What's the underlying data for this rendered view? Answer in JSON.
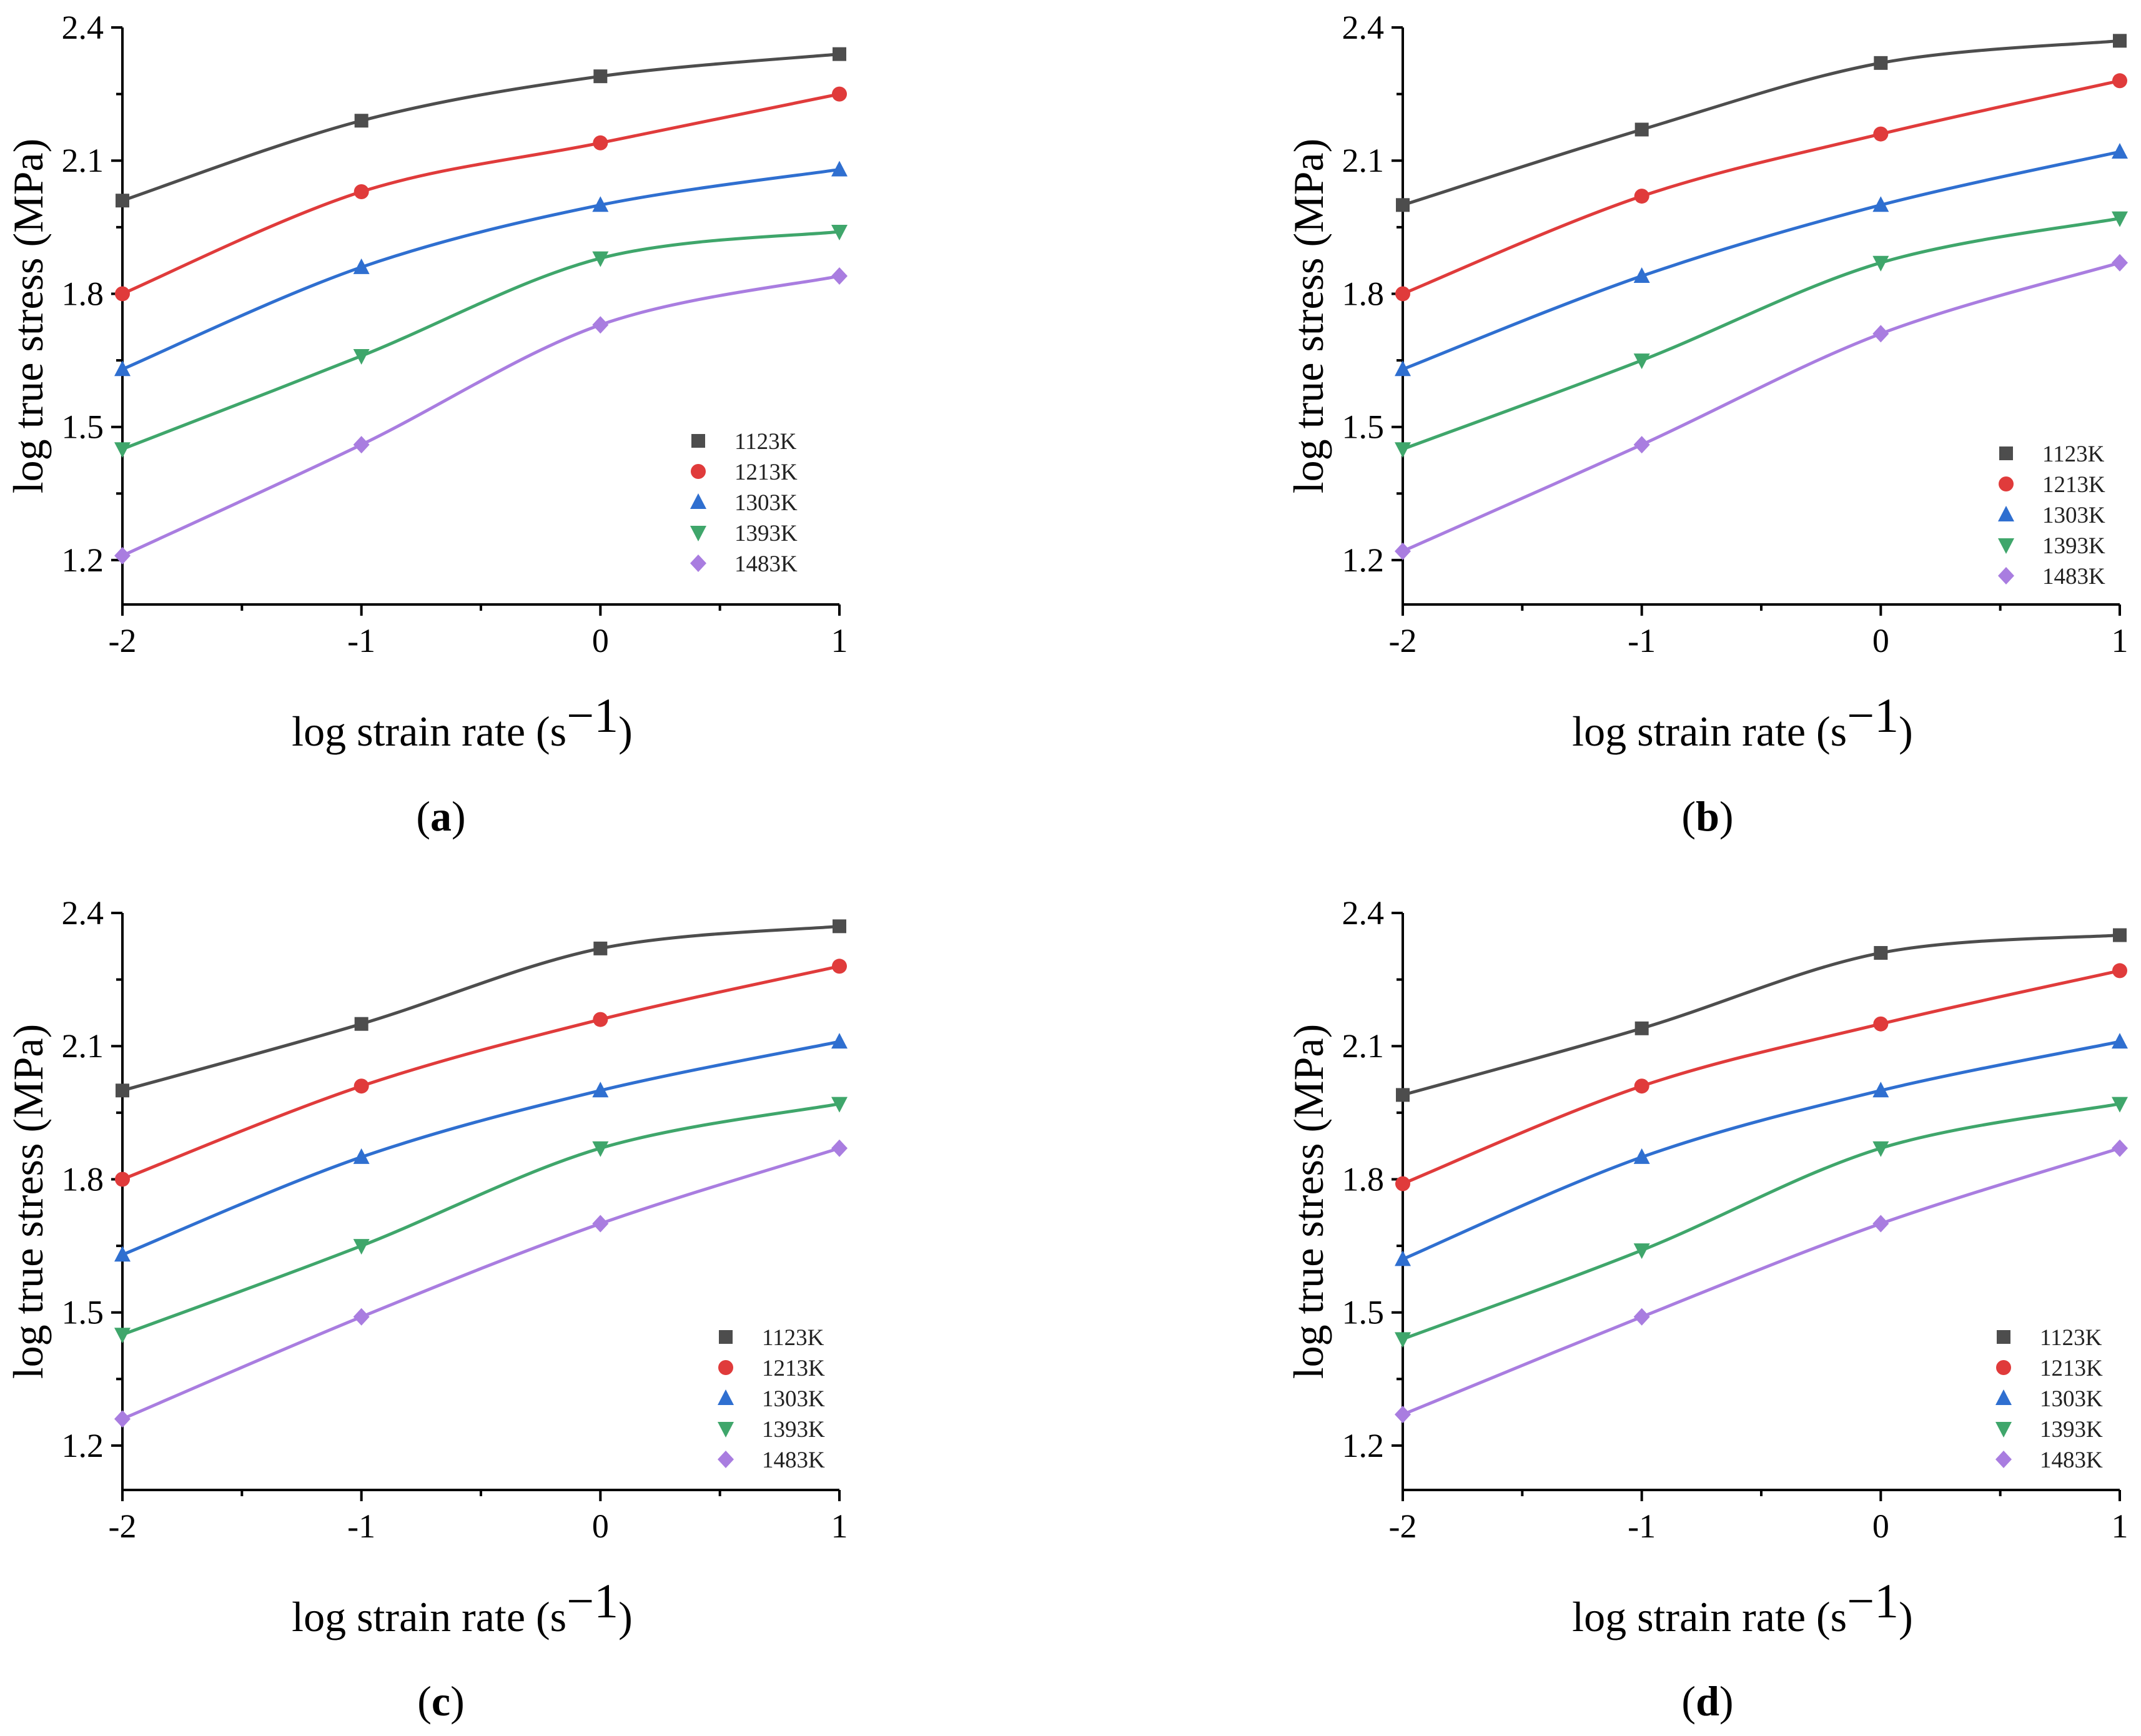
{
  "chart_data": [
    {
      "panel": "a",
      "caption": "(a)",
      "type": "line",
      "xlabel": "log strain rate (s",
      "xlabel_sup": "−1",
      "xlabel_close": ")",
      "ylabel": "log true stress (MPa)",
      "xlim": [
        -2,
        1
      ],
      "ylim": [
        1.1,
        2.4
      ],
      "xticks": [
        "-2",
        "-1",
        "0",
        "1"
      ],
      "yticks": [
        "1.2",
        "1.5",
        "1.8",
        "2.1",
        "2.4"
      ],
      "x": [
        -2,
        -1,
        0,
        1
      ],
      "series": [
        {
          "name": "1123K",
          "marker": "square",
          "color": "#4d4d4d",
          "values": [
            2.01,
            2.19,
            2.29,
            2.34
          ]
        },
        {
          "name": "1213K",
          "marker": "circle",
          "color": "#e03b3b",
          "values": [
            1.8,
            2.03,
            2.14,
            2.25
          ]
        },
        {
          "name": "1303K",
          "marker": "triangle-up",
          "color": "#2f6fd0",
          "values": [
            1.63,
            1.86,
            2.0,
            2.08
          ]
        },
        {
          "name": "1393K",
          "marker": "triangle-down",
          "color": "#3fa66b",
          "values": [
            1.45,
            1.66,
            1.88,
            1.94
          ]
        },
        {
          "name": "1483K",
          "marker": "diamond",
          "color": "#a97de0",
          "values": [
            1.21,
            1.46,
            1.73,
            1.84
          ]
        }
      ]
    },
    {
      "panel": "b",
      "caption": "(b)",
      "type": "line",
      "xlabel": "log strain rate (s",
      "xlabel_sup": "−1",
      "xlabel_close": ")",
      "ylabel": "log true stress (MPa)",
      "xlim": [
        -2,
        1
      ],
      "ylim": [
        1.1,
        2.4
      ],
      "xticks": [
        "-2",
        "-1",
        "0",
        "1"
      ],
      "yticks": [
        "1.2",
        "1.5",
        "1.8",
        "2.1",
        "2.4"
      ],
      "x": [
        -2,
        -1,
        0,
        1
      ],
      "series": [
        {
          "name": "1123K",
          "marker": "square",
          "color": "#4d4d4d",
          "values": [
            2.0,
            2.17,
            2.32,
            2.37
          ]
        },
        {
          "name": "1213K",
          "marker": "circle",
          "color": "#e03b3b",
          "values": [
            1.8,
            2.02,
            2.16,
            2.28
          ]
        },
        {
          "name": "1303K",
          "marker": "triangle-up",
          "color": "#2f6fd0",
          "values": [
            1.63,
            1.84,
            2.0,
            2.12
          ]
        },
        {
          "name": "1393K",
          "marker": "triangle-down",
          "color": "#3fa66b",
          "values": [
            1.45,
            1.65,
            1.87,
            1.97
          ]
        },
        {
          "name": "1483K",
          "marker": "diamond",
          "color": "#a97de0",
          "values": [
            1.22,
            1.46,
            1.71,
            1.87
          ]
        }
      ]
    },
    {
      "panel": "c",
      "caption": "(c)",
      "type": "line",
      "xlabel": "log strain rate (s",
      "xlabel_sup": "−1",
      "xlabel_close": ")",
      "ylabel": "log true stress (MPa)",
      "xlim": [
        -2,
        1
      ],
      "ylim": [
        1.1,
        2.4
      ],
      "xticks": [
        "-2",
        "-1",
        "0",
        "1"
      ],
      "yticks": [
        "1.2",
        "1.5",
        "1.8",
        "2.1",
        "2.4"
      ],
      "x": [
        -2,
        -1,
        0,
        1
      ],
      "series": [
        {
          "name": "1123K",
          "marker": "square",
          "color": "#4d4d4d",
          "values": [
            2.0,
            2.15,
            2.32,
            2.37
          ]
        },
        {
          "name": "1213K",
          "marker": "circle",
          "color": "#e03b3b",
          "values": [
            1.8,
            2.01,
            2.16,
            2.28
          ]
        },
        {
          "name": "1303K",
          "marker": "triangle-up",
          "color": "#2f6fd0",
          "values": [
            1.63,
            1.85,
            2.0,
            2.11
          ]
        },
        {
          "name": "1393K",
          "marker": "triangle-down",
          "color": "#3fa66b",
          "values": [
            1.45,
            1.65,
            1.87,
            1.97
          ]
        },
        {
          "name": "1483K",
          "marker": "diamond",
          "color": "#a97de0",
          "values": [
            1.26,
            1.49,
            1.7,
            1.87
          ]
        }
      ]
    },
    {
      "panel": "d",
      "caption": "(d)",
      "type": "line",
      "xlabel": "log strain rate (s",
      "xlabel_sup": "−1",
      "xlabel_close": ")",
      "ylabel": "log true stress (MPa)",
      "xlim": [
        -2,
        1
      ],
      "ylim": [
        1.1,
        2.4
      ],
      "xticks": [
        "-2",
        "-1",
        "0",
        "1"
      ],
      "yticks": [
        "1.2",
        "1.5",
        "1.8",
        "2.1",
        "2.4"
      ],
      "x": [
        -2,
        -1,
        0,
        1
      ],
      "series": [
        {
          "name": "1123K",
          "marker": "square",
          "color": "#4d4d4d",
          "values": [
            1.99,
            2.14,
            2.31,
            2.35
          ]
        },
        {
          "name": "1213K",
          "marker": "circle",
          "color": "#e03b3b",
          "values": [
            1.79,
            2.01,
            2.15,
            2.27
          ]
        },
        {
          "name": "1303K",
          "marker": "triangle-up",
          "color": "#2f6fd0",
          "values": [
            1.62,
            1.85,
            2.0,
            2.11
          ]
        },
        {
          "name": "1393K",
          "marker": "triangle-down",
          "color": "#3fa66b",
          "values": [
            1.44,
            1.64,
            1.87,
            1.97
          ]
        },
        {
          "name": "1483K",
          "marker": "diamond",
          "color": "#a97de0",
          "values": [
            1.27,
            1.49,
            1.7,
            1.87
          ]
        }
      ]
    }
  ]
}
